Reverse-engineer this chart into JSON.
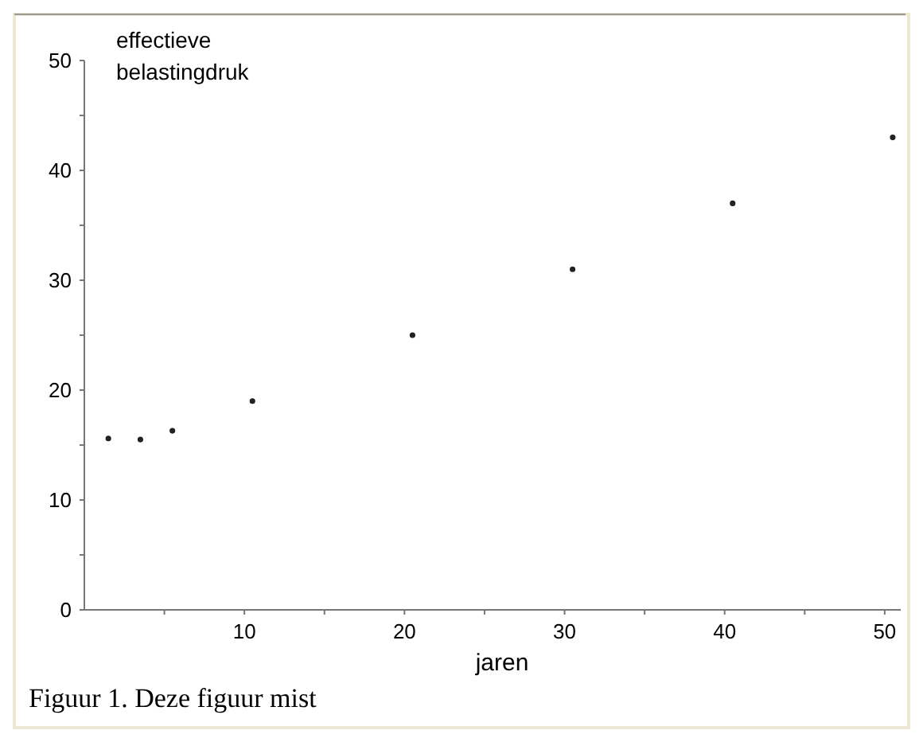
{
  "chart_data": {
    "type": "scatter",
    "ylabel": "effectieve belastingdruk",
    "xlabel": "jaren",
    "annotations": [
      "Figuur 1. Deze figuur mist"
    ],
    "x": [
      1.5,
      3.5,
      5.5,
      10.5,
      20.5,
      30.5,
      40.5,
      50.5
    ],
    "series": [
      {
        "color": "#222222",
        "values": [
          15.6,
          15.5,
          16.3,
          19,
          25,
          31,
          37,
          43
        ]
      }
    ],
    "xlim": [
      0,
      51
    ],
    "ylim": [
      0,
      50
    ],
    "xticks": [
      {
        "value": 5,
        "label": null
      },
      10,
      {
        "value": 15,
        "label": null
      },
      20,
      {
        "value": 25,
        "label": null
      },
      30,
      {
        "value": 35,
        "label": null
      },
      40,
      {
        "value": 45,
        "label": null
      },
      50
    ],
    "yticks": [
      0,
      {
        "value": 5,
        "label": null
      },
      10,
      {
        "value": 15,
        "label": null
      },
      20,
      {
        "value": 25,
        "label": null
      },
      30,
      {
        "value": 35,
        "label": null
      },
      40,
      {
        "value": 45,
        "label": null
      },
      50
    ],
    "marker": "circle",
    "grid": false
  }
}
